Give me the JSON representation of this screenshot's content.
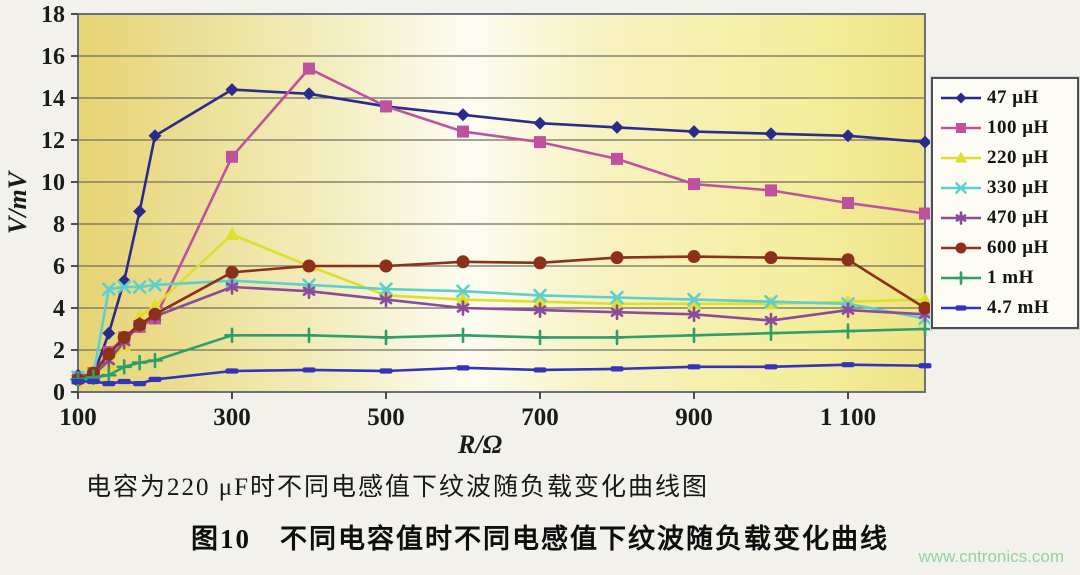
{
  "figure": {
    "caption_line1": "电容为220 μF时不同电感值下纹波随负载变化曲线图",
    "caption_line2": "图10　不同电容值时不同电感值下纹波随负载变化曲线",
    "watermark": "www.cntronics.com"
  },
  "chart_data": {
    "type": "line",
    "title": "",
    "xlabel": "R/Ω",
    "ylabel": "V/mV",
    "xlim": [
      100,
      1200
    ],
    "ylim": [
      0,
      18
    ],
    "grid": true,
    "grid_color": "#6f6f5e",
    "border_color": "#68707e",
    "axis_text_color": "#1a1a1a",
    "legend_position": "right",
    "x_ticks": [
      100,
      300,
      500,
      700,
      900,
      1100
    ],
    "x_tick_labels": [
      "100",
      "300",
      "500",
      "700",
      "900",
      "1 100"
    ],
    "y_ticks": [
      0,
      2,
      4,
      6,
      8,
      10,
      12,
      14,
      16,
      18
    ],
    "plot_bg_gradient": [
      {
        "offset": "0%",
        "color": "#e6d373"
      },
      {
        "offset": "28%",
        "color": "#f2ecba"
      },
      {
        "offset": "46%",
        "color": "#fcfcf2"
      },
      {
        "offset": "62%",
        "color": "#f7f2c0"
      },
      {
        "offset": "85%",
        "color": "#f4ee9e"
      },
      {
        "offset": "100%",
        "color": "#efe387"
      }
    ],
    "x": [
      100,
      120,
      140,
      160,
      180,
      200,
      300,
      400,
      500,
      600,
      700,
      800,
      900,
      1000,
      1100,
      1200
    ],
    "series": [
      {
        "name": "47 μH",
        "color": "#2b2b8c",
        "marker": "diamond",
        "values": [
          0.8,
          0.8,
          2.8,
          5.3,
          8.6,
          12.2,
          14.4,
          14.2,
          13.6,
          13.2,
          12.8,
          12.6,
          12.4,
          12.3,
          12.2,
          11.9
        ]
      },
      {
        "name": "100 μH",
        "color": "#c0519f",
        "marker": "square",
        "values": [
          0.7,
          0.9,
          1.9,
          2.6,
          3.1,
          3.5,
          11.2,
          15.4,
          13.6,
          12.4,
          11.9,
          11.1,
          9.9,
          9.6,
          9.0,
          8.5
        ]
      },
      {
        "name": "220 μH",
        "color": "#dfdd2e",
        "marker": "triangle",
        "values": [
          0.6,
          0.8,
          1.3,
          2.2,
          3.6,
          4.1,
          7.5,
          6.0,
          4.6,
          4.4,
          4.3,
          4.2,
          4.2,
          4.2,
          4.3,
          4.4
        ]
      },
      {
        "name": "330 μH",
        "color": "#5ccfcf",
        "marker": "x",
        "values": [
          0.7,
          0.8,
          4.9,
          5.0,
          5.0,
          5.1,
          5.3,
          5.1,
          4.9,
          4.8,
          4.6,
          4.5,
          4.4,
          4.3,
          4.2,
          3.5
        ]
      },
      {
        "name": "470 μH",
        "color": "#8b4b9b",
        "marker": "asterisk",
        "values": [
          0.6,
          0.8,
          1.5,
          2.4,
          3.2,
          3.6,
          5.0,
          4.8,
          4.4,
          4.0,
          3.9,
          3.8,
          3.7,
          3.4,
          3.9,
          3.7
        ]
      },
      {
        "name": "600 μH",
        "color": "#8c2f1b",
        "marker": "circle",
        "values": [
          0.6,
          0.9,
          1.8,
          2.6,
          3.2,
          3.7,
          5.7,
          6.0,
          6.0,
          6.2,
          6.15,
          6.4,
          6.45,
          6.4,
          6.3,
          4.0
        ]
      },
      {
        "name": "1 mH",
        "color": "#2f9e68",
        "marker": "plus",
        "values": [
          0.6,
          0.7,
          0.8,
          1.2,
          1.4,
          1.5,
          2.7,
          2.7,
          2.6,
          2.7,
          2.6,
          2.6,
          2.7,
          2.8,
          2.9,
          3.0
        ]
      },
      {
        "name": "4.7 mH",
        "color": "#3333bb",
        "marker": "dash",
        "values": [
          0.5,
          0.5,
          0.4,
          0.5,
          0.4,
          0.6,
          1.0,
          1.05,
          1.0,
          1.15,
          1.05,
          1.1,
          1.2,
          1.2,
          1.3,
          1.25
        ]
      }
    ]
  }
}
